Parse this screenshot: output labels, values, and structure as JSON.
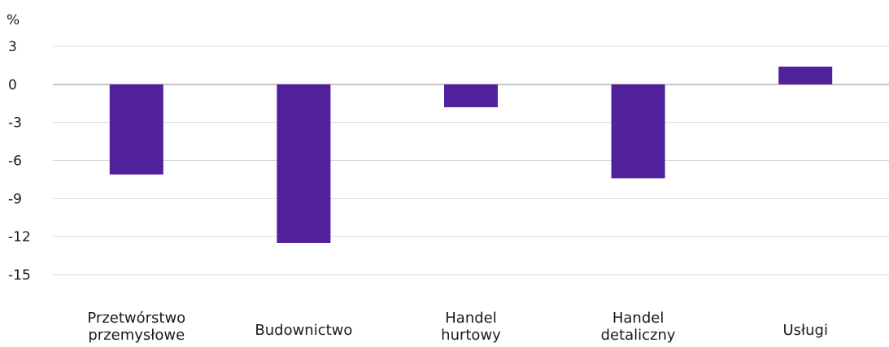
{
  "chart_data": {
    "type": "bar",
    "unit_label": "%",
    "categories": [
      [
        "Przetwórstwo",
        "przemysłowe"
      ],
      [
        "Budownictwo"
      ],
      [
        "Handel",
        "hurtowy"
      ],
      [
        "Handel",
        "detaliczny"
      ],
      [
        "Usługi"
      ]
    ],
    "values": [
      -7.1,
      -12.5,
      -1.8,
      -7.4,
      1.4
    ],
    "yticks": [
      3,
      0,
      -3,
      -6,
      -9,
      -12,
      -15
    ],
    "ylim": [
      -15,
      3
    ],
    "grid": true,
    "bar_color": "#51209b"
  }
}
